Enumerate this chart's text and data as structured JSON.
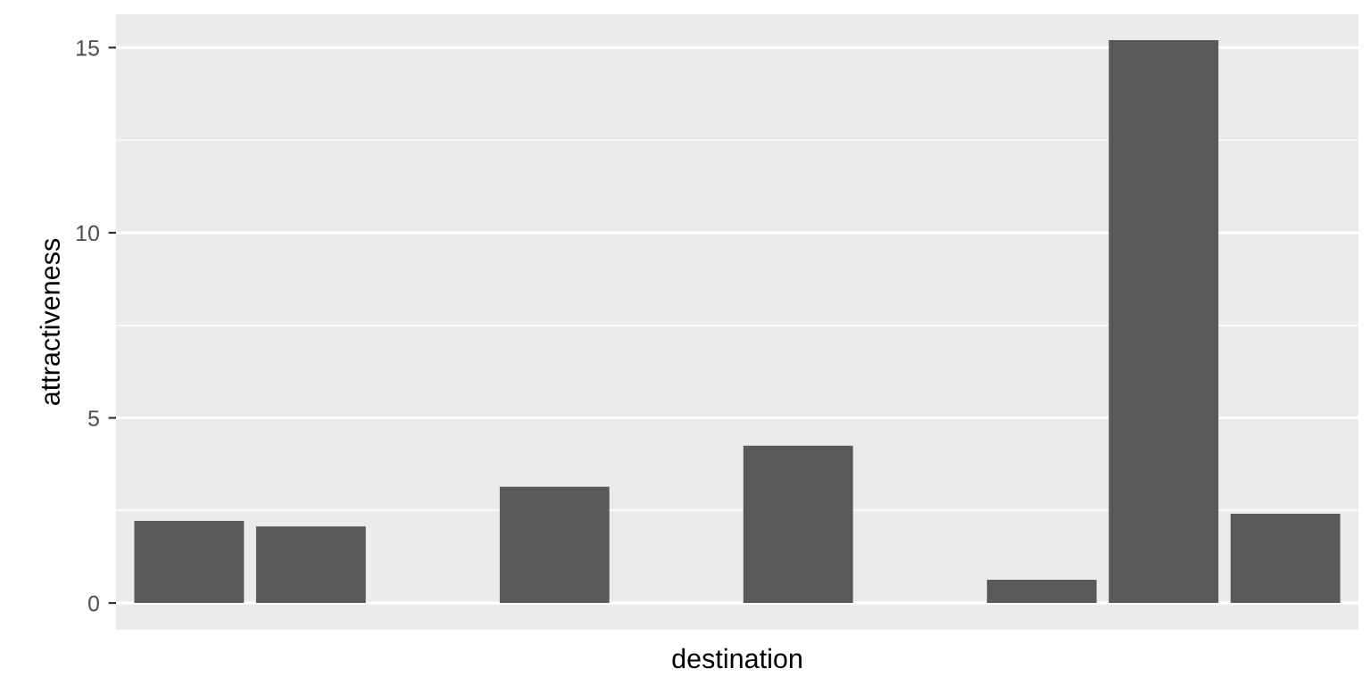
{
  "chart_data": {
    "type": "bar",
    "xlabel": "destination",
    "ylabel": "attractiveness",
    "categories": [
      null,
      null,
      null,
      null,
      null,
      null,
      null,
      null,
      null,
      null
    ],
    "values": [
      2.22,
      2.07,
      null,
      3.14,
      null,
      4.25,
      null,
      0.63,
      15.2,
      2.41
    ],
    "color": "#595959",
    "ylim": [
      -0.72,
      15.9
    ],
    "yticks": [
      0,
      5,
      10,
      15
    ],
    "grid": "y"
  }
}
